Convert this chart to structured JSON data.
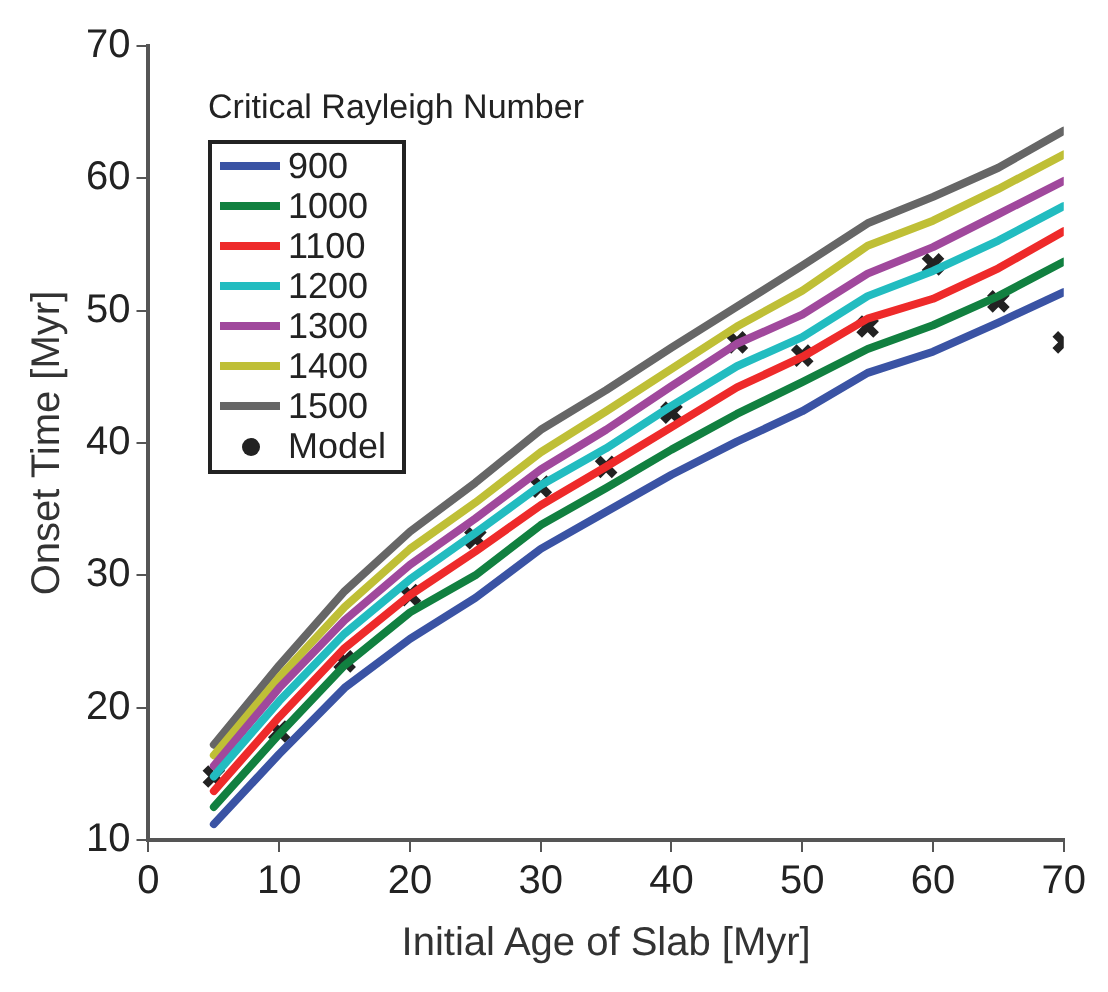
{
  "chart_data": {
    "type": "line",
    "xlabel": "Initial Age of Slab [Myr]",
    "ylabel": "Onset Time [Myr]",
    "legend_title": "Critical Rayleigh Number",
    "x": [
      5,
      10,
      15,
      20,
      25,
      30,
      35,
      40,
      45,
      50,
      55,
      60,
      65,
      70
    ],
    "xlim": [
      0,
      70
    ],
    "xticks": [
      0,
      10,
      20,
      30,
      40,
      50,
      60,
      70
    ],
    "ylim": [
      10,
      70
    ],
    "yticks": [
      10,
      20,
      30,
      40,
      50,
      60,
      70
    ],
    "grid": false,
    "legend": "top left",
    "marker": "none",
    "line_style": "solid",
    "series": [
      {
        "name": "900",
        "color": "#3a53a4",
        "values": [
          11.2,
          16.5,
          21.5,
          25.2,
          28.3,
          32.0,
          34.8,
          37.6,
          40.1,
          42.4,
          45.3,
          46.9,
          49.1,
          51.4
        ]
      },
      {
        "name": "1000",
        "color": "#118040",
        "values": [
          12.5,
          18.0,
          23.2,
          27.2,
          30.0,
          33.8,
          36.6,
          39.5,
          42.2,
          44.6,
          47.1,
          48.9,
          51.1,
          53.7
        ]
      },
      {
        "name": "1100",
        "color": "#ee2a2a",
        "values": [
          13.7,
          19.3,
          24.5,
          28.5,
          31.8,
          35.3,
          38.2,
          41.2,
          44.2,
          46.5,
          49.4,
          50.9,
          53.2,
          56.0
        ]
      },
      {
        "name": "1200",
        "color": "#22bcc0",
        "values": [
          14.8,
          20.5,
          25.6,
          29.7,
          33.2,
          36.8,
          39.6,
          42.8,
          45.8,
          48.0,
          51.1,
          53.0,
          55.3,
          57.9
        ]
      },
      {
        "name": "1300",
        "color": "#a0489c",
        "values": [
          15.6,
          21.5,
          26.6,
          30.8,
          34.3,
          38.0,
          41.0,
          44.3,
          47.5,
          49.7,
          52.8,
          54.8,
          57.3,
          59.8
        ]
      },
      {
        "name": "1400",
        "color": "#bfbf36",
        "values": [
          16.4,
          22.3,
          27.6,
          32.0,
          35.5,
          39.3,
          42.4,
          45.6,
          48.8,
          51.5,
          54.9,
          56.8,
          59.2,
          61.8
        ]
      },
      {
        "name": "1500",
        "color": "#666666",
        "values": [
          17.2,
          23.2,
          28.8,
          33.3,
          37.0,
          41.0,
          44.0,
          47.2,
          50.3,
          53.4,
          56.6,
          58.6,
          60.8,
          63.6
        ]
      },
      {
        "name": "Model",
        "type": "scatter",
        "marker": "cross",
        "color": "#222222",
        "values": [
          14.8,
          18.2,
          23.5,
          28.5,
          32.8,
          36.7,
          38.2,
          42.3,
          47.6,
          46.6,
          48.8,
          53.5,
          50.7,
          47.6
        ]
      }
    ]
  }
}
